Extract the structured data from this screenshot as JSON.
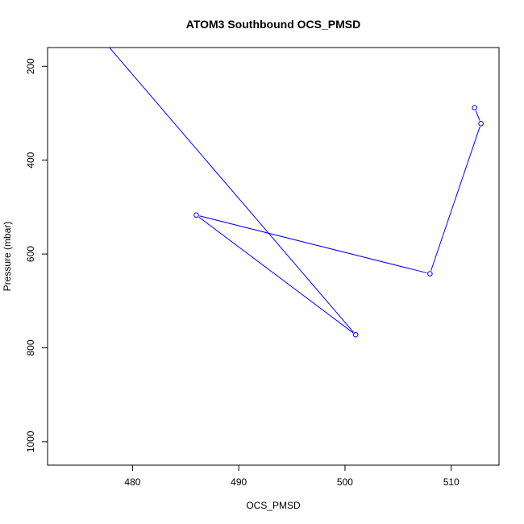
{
  "chart_data": {
    "type": "line",
    "title": "ATOM3 Southbound OCS_PMSD",
    "xlabel": "OCS_PMSD",
    "ylabel": "Pressure (mbar)",
    "xlim": [
      472,
      514.5
    ],
    "ylim": [
      1050,
      160
    ],
    "y_reversed": true,
    "xticks": [
      480,
      490,
      500,
      510
    ],
    "yticks": [
      200,
      400,
      600,
      800,
      1000
    ],
    "series": [
      {
        "color": "#0000ff",
        "points": [
          {
            "x": 476.5,
            "y": 125,
            "marker": false
          },
          {
            "x": 501.0,
            "y": 772,
            "marker": true
          },
          {
            "x": 486.0,
            "y": 517,
            "marker": true
          },
          {
            "x": 508.0,
            "y": 642,
            "marker": true
          },
          {
            "x": 512.8,
            "y": 322,
            "marker": true
          },
          {
            "x": 512.2,
            "y": 288,
            "marker": true
          }
        ]
      }
    ],
    "grid": false,
    "legend": "none"
  }
}
